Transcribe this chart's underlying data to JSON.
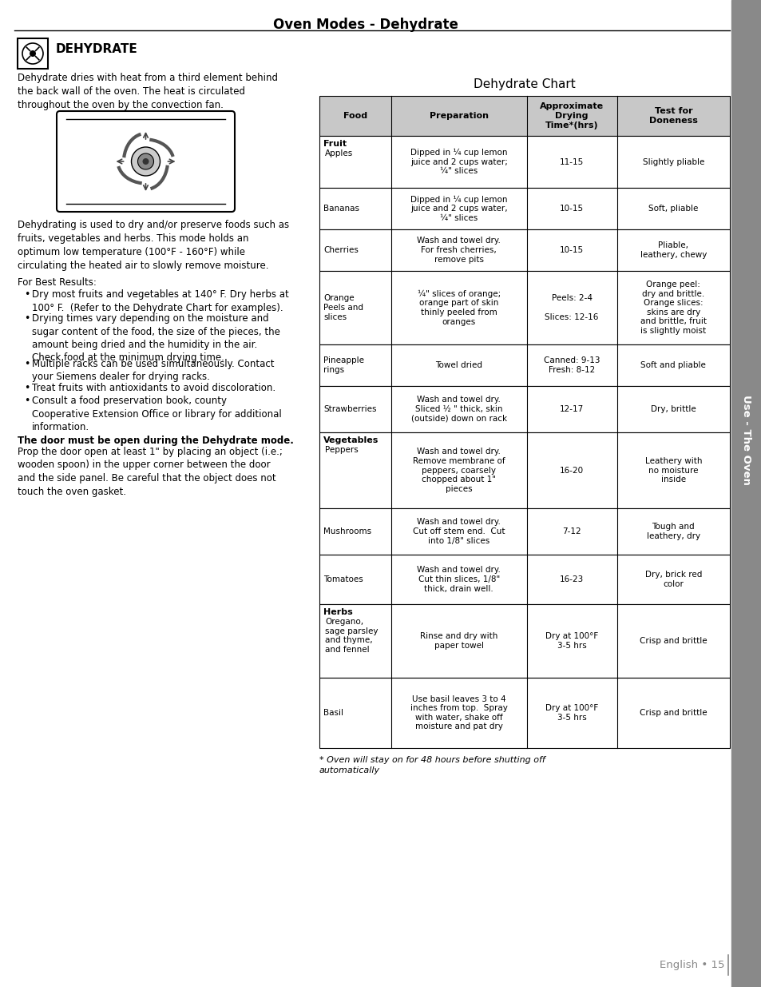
{
  "page_title": "Oven Modes - Dehydrate",
  "section_title": "DEHYDRATE",
  "section_text": "Dehydrate dries with heat from a third element behind\nthe back wall of the oven. The heat is circulated\nthroughout the oven by the convection fan.",
  "body_text": "Dehydrating is used to dry and/or preserve foods such as\nfruits, vegetables and herbs. This mode holds an\noptimum low temperature (100°F - 160°F) while\ncirculating the heated air to slowly remove moisture.",
  "best_results_title": "For Best Results:",
  "best_results_bullets": [
    "Dry most fruits and vegetables at 140° F. Dry herbs at\n100° F.  (Refer to the Dehydrate Chart for examples).",
    "Drying times vary depending on the moisture and\nsugar content of the food, the size of the pieces, the\namount being dried and the humidity in the air.\nCheck food at the minimum drying time.",
    "Multiple racks can be used simultaneously. Contact\nyour Siemens dealer for drying racks.",
    "Treat fruits with antioxidants to avoid discoloration.",
    "Consult a food preservation book, county\nCooperative Extension Office or library for additional\ninformation."
  ],
  "door_warning_bold": "The door must be open during the Dehydrate mode.",
  "door_warning_text": "Prop the door open at least 1\" by placing an object (i.e.;\nwooden spoon) in the upper corner between the door\nand the side panel. Be careful that the object does not\ntouch the oven gasket.",
  "chart_title": "Dehydrate Chart",
  "chart_headers": [
    "Food",
    "Preparation",
    "Approximate\nDrying\nTime*(hrs)",
    "Test for\nDoneness"
  ],
  "header_bg": "#c8c8c8",
  "chart_rows": [
    {
      "category": "Fruit",
      "food": "Apples",
      "preparation": "Dipped in ¼ cup lemon\njuice and 2 cups water;\n¼\" slices",
      "time": "11-15",
      "doneness": "Slightly pliable"
    },
    {
      "category": "",
      "food": "Bananas",
      "preparation": "Dipped in ¼ cup lemon\njuice and 2 cups water,\n¼\" slices",
      "time": "10-15",
      "doneness": "Soft, pliable"
    },
    {
      "category": "",
      "food": "Cherries",
      "preparation": "Wash and towel dry.\nFor fresh cherries,\nremove pits",
      "time": "10-15",
      "doneness": "Pliable,\nleathery, chewy"
    },
    {
      "category": "",
      "food": "Orange\nPeels and\nslices",
      "preparation": "¼\" slices of orange;\norange part of skin\nthinly peeled from\noranges",
      "time": "Peels: 2-4\n\nSlices: 12-16",
      "doneness": "Orange peel:\ndry and brittle.\nOrange slices:\nskins are dry\nand brittle, fruit\nis slightly moist"
    },
    {
      "category": "",
      "food": "Pineapple\nrings",
      "preparation": "Towel dried",
      "time": "Canned: 9-13\nFresh: 8-12",
      "doneness": "Soft and pliable"
    },
    {
      "category": "",
      "food": "Strawberries",
      "preparation": "Wash and towel dry.\nSliced ½ \" thick, skin\n(outside) down on rack",
      "time": "12-17",
      "doneness": "Dry, brittle"
    },
    {
      "category": "Vegetables",
      "food": "Peppers",
      "preparation": "Wash and towel dry.\nRemove membrane of\npeppers, coarsely\nchopped about 1\"\npieces",
      "time": "16-20",
      "doneness": "Leathery with\nno moisture\ninside"
    },
    {
      "category": "",
      "food": "Mushrooms",
      "preparation": "Wash and towel dry.\nCut off stem end.  Cut\ninto 1/8\" slices",
      "time": "7-12",
      "doneness": "Tough and\nleathery, dry"
    },
    {
      "category": "",
      "food": "Tomatoes",
      "preparation": "Wash and towel dry.\nCut thin slices, 1/8\"\nthick, drain well.",
      "time": "16-23",
      "doneness": "Dry, brick red\ncolor"
    },
    {
      "category": "Herbs",
      "food": "Oregano,\nsage parsley\nand thyme,\nand fennel",
      "preparation": "Rinse and dry with\npaper towel",
      "time": "Dry at 100°F\n3-5 hrs",
      "doneness": "Crisp and brittle"
    },
    {
      "category": "",
      "food": "Basil",
      "preparation": "Use basil leaves 3 to 4\ninches from top.  Spray\nwith water, shake off\nmoisture and pat dry",
      "time": "Dry at 100°F\n3-5 hrs",
      "doneness": "Crisp and brittle"
    }
  ],
  "footnote": "* Oven will stay on for 48 hours before shutting off\nautomatically",
  "sidebar_color": "#898989",
  "sidebar_text": "Use - The Oven",
  "page_number_text": "English • 15",
  "page_number_color": "#888888",
  "background_color": "#ffffff"
}
